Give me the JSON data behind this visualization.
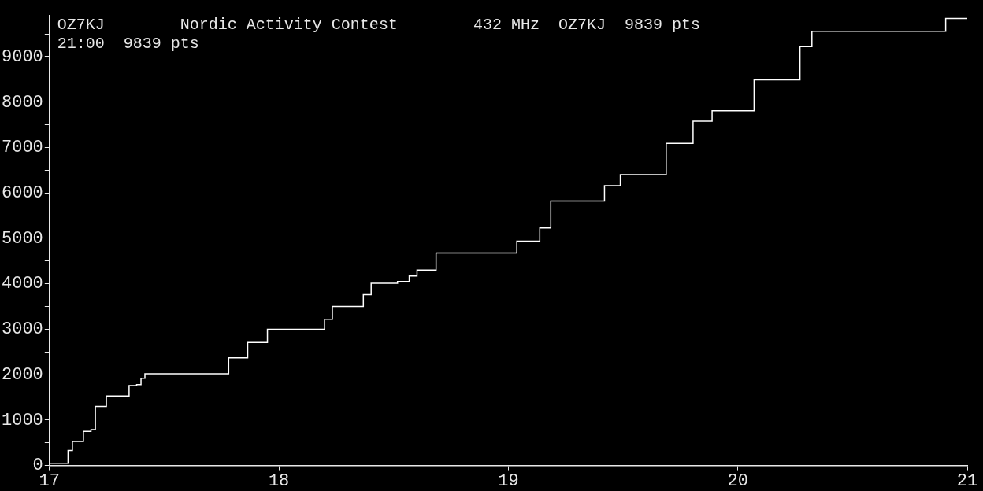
{
  "chart_data": {
    "type": "step",
    "title": "OZ7KJ        Nordic Activity Contest        432 MHz  OZ7KJ  9839 pts",
    "subtitle": "21:00  9839 pts",
    "x": [
      17,
      17.081,
      17.1,
      17.148,
      17.181,
      17.2,
      17.248,
      17.347,
      17.38,
      17.399,
      17.416,
      17.781,
      17.864,
      17.95,
      18.199,
      18.233,
      18.368,
      18.402,
      18.517,
      18.568,
      18.602,
      18.685,
      19.037,
      19.137,
      19.185,
      19.419,
      19.488,
      19.688,
      19.805,
      19.888,
      20.071,
      20.271,
      20.323,
      20.906,
      21
    ],
    "values": [
      50,
      330,
      530,
      750,
      790,
      1300,
      1530,
      1760,
      1780,
      1920,
      2020,
      2370,
      2710,
      3000,
      3220,
      3500,
      3760,
      4010,
      4050,
      4170,
      4300,
      4680,
      4940,
      5230,
      5820,
      6160,
      6400,
      7090,
      7580,
      7810,
      8490,
      9220,
      9560,
      9839,
      9839
    ],
    "color": "#ffffff",
    "marker": "none",
    "xlim": [
      17,
      21
    ],
    "xticks": [
      17,
      18,
      19,
      20,
      21
    ],
    "ylim": [
      0,
      9900
    ],
    "yticks": [
      0,
      {
        "value": 500,
        "label": null
      },
      1000,
      {
        "value": 1500,
        "label": null
      },
      2000,
      {
        "value": 2500,
        "label": null
      },
      3000,
      {
        "value": 3500,
        "label": null
      },
      4000,
      {
        "value": 4500,
        "label": null
      },
      5000,
      {
        "value": 5500,
        "label": null
      },
      6000,
      {
        "value": 6500,
        "label": null
      },
      7000,
      {
        "value": 7500,
        "label": null
      },
      8000,
      {
        "value": 8500,
        "label": null
      },
      9000,
      {
        "value": 9500,
        "label": null
      }
    ]
  }
}
